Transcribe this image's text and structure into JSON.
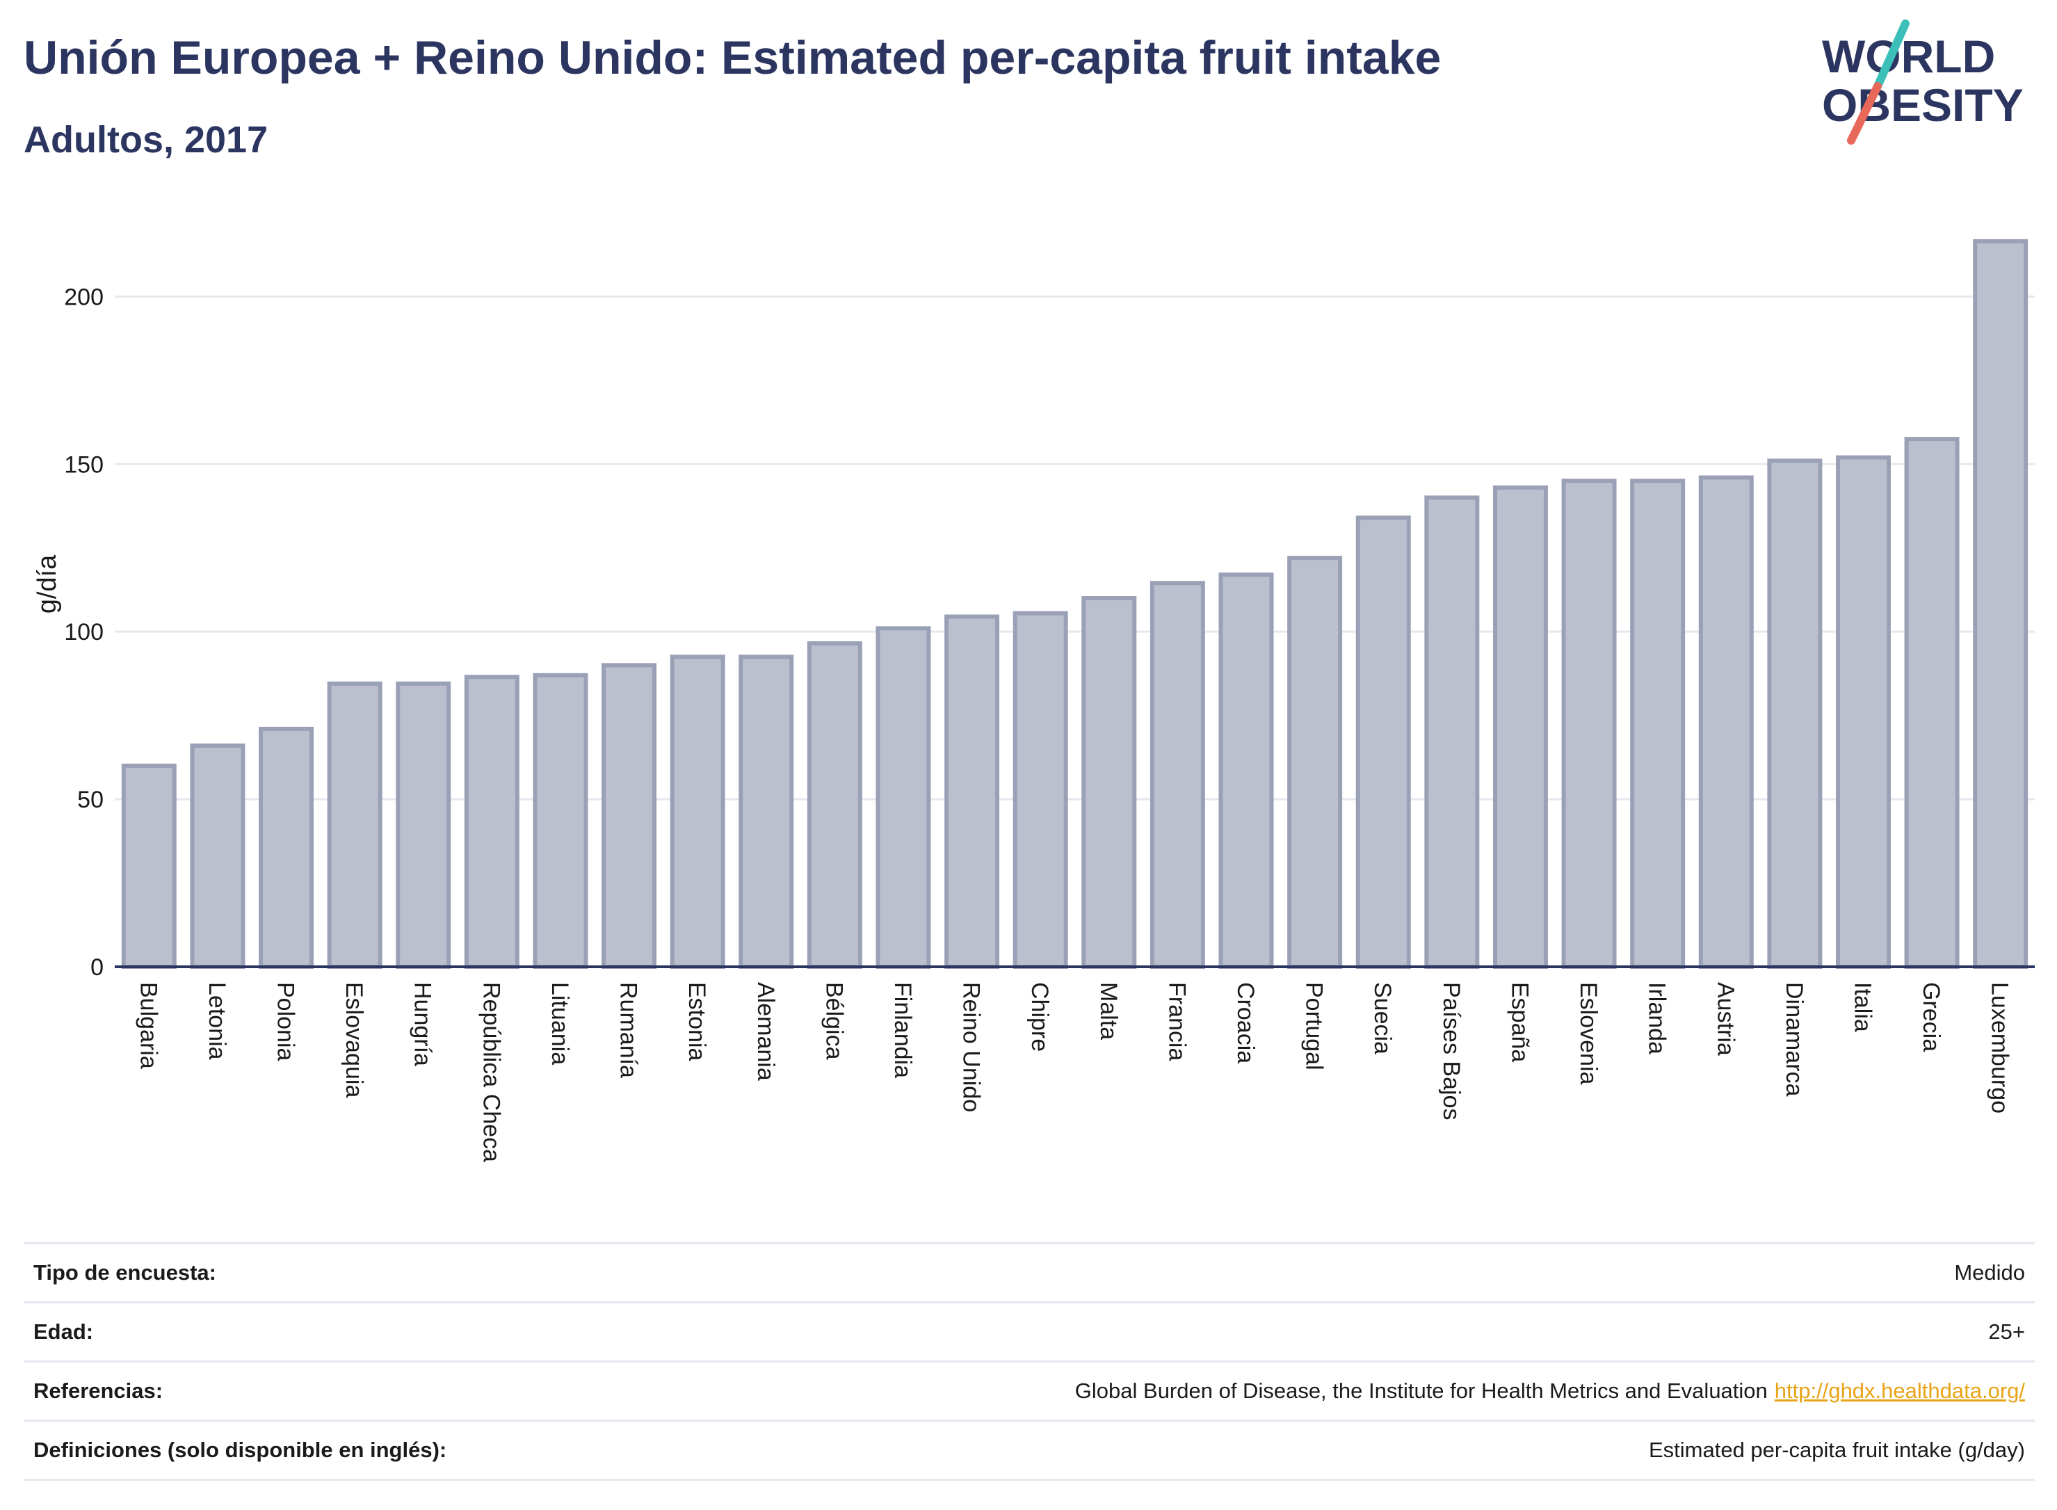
{
  "header": {
    "title": "Unión Europea + Reino Unido: Estimated per-capita fruit intake",
    "subtitle": "Adultos, 2017"
  },
  "logo": {
    "line1": "WORLD",
    "line2": "OBESITY",
    "colors": {
      "text": "#2b3560",
      "slash_top": "#3bbfb8",
      "slash_bottom": "#e8685a"
    }
  },
  "chart_data": {
    "type": "bar",
    "ylabel": "g/día",
    "xlabel": "",
    "ylim": [
      0,
      220
    ],
    "yticks": [
      0,
      50,
      100,
      150,
      200
    ],
    "grid": true,
    "bar_fill": "#bcc0ce",
    "bar_stroke": "#9aa0b6",
    "categories": [
      "Bulgaria",
      "Letonia",
      "Polonia",
      "Eslovaquia",
      "Hungría",
      "República Checa",
      "Lituania",
      "Rumanía",
      "Estonia",
      "Alemania",
      "Bélgica",
      "Finlandia",
      "Reino Unido",
      "Chipre",
      "Malta",
      "Francia",
      "Croacia",
      "Portugal",
      "Suecia",
      "Países Bajos",
      "España",
      "Eslovenia",
      "Irlanda",
      "Austria",
      "Dinamarca",
      "Italia",
      "Grecia",
      "Luxemburgo"
    ],
    "values": [
      60,
      66,
      71,
      84.5,
      84.5,
      86.5,
      87,
      90,
      92.5,
      92.5,
      96.5,
      101,
      104.5,
      105.5,
      110,
      114.5,
      117,
      122,
      134,
      140,
      143,
      145,
      145,
      146,
      151,
      152,
      157.5,
      216.5
    ]
  },
  "info": {
    "rows": [
      {
        "key": "Tipo de encuesta:",
        "value": "Medido"
      },
      {
        "key": "Edad:",
        "value": "25+"
      },
      {
        "key": "Referencias:",
        "value": "Global Burden of Disease, the Institute for Health Metrics and Evaluation",
        "link": "http://ghdx.healthdata.org/"
      },
      {
        "key": "Definiciones (solo disponible en inglés):",
        "value": "Estimated per-capita fruit intake (g/day)"
      }
    ]
  }
}
